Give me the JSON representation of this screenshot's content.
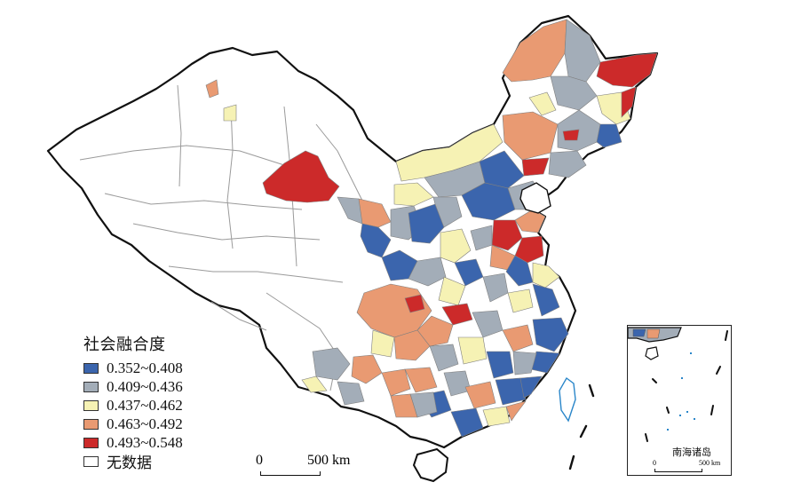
{
  "colors": {
    "c1": "#3b65ad",
    "c2": "#a3adb8",
    "c3": "#f6f2b4",
    "c4": "#e99a72",
    "c5": "#cc2a2a",
    "nodata": "#ffffff",
    "boundary": "#999999",
    "coast": "#111111"
  },
  "legend": {
    "title": "社会融合度",
    "items": [
      {
        "key": "c1",
        "label": "0.352~0.408",
        "color": "#3b65ad"
      },
      {
        "key": "c2",
        "label": "0.409~0.436",
        "color": "#a3adb8"
      },
      {
        "key": "c3",
        "label": "0.437~0.462",
        "color": "#f6f2b4"
      },
      {
        "key": "c4",
        "label": "0.463~0.492",
        "color": "#e99a72"
      },
      {
        "key": "c5",
        "label": "0.493~0.548",
        "color": "#cc2a2a"
      },
      {
        "key": "nodata",
        "label": "无数据",
        "color": "#ffffff"
      }
    ]
  },
  "scale": {
    "zero": "0",
    "max": "500 km"
  },
  "inset": {
    "label": "南海诸岛",
    "zero": "0",
    "max": "500 km"
  }
}
